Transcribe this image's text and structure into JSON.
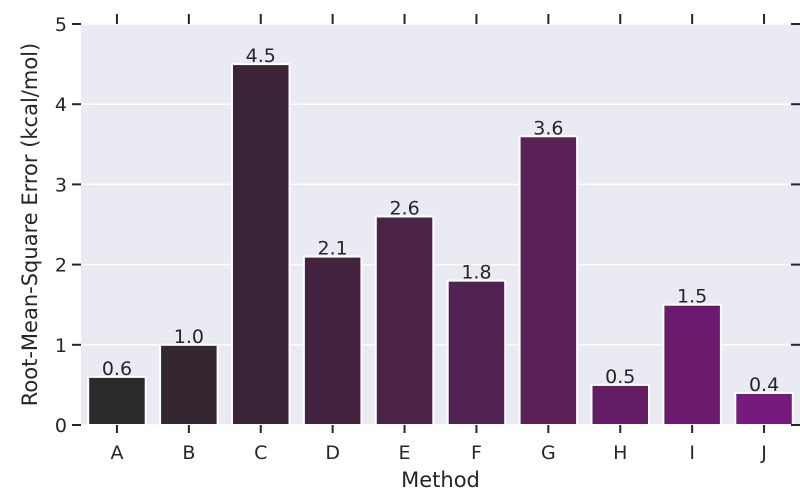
{
  "chart_data": {
    "type": "bar",
    "title": "",
    "xlabel": "Method",
    "ylabel": "Root-Mean-Square Error (kcal/mol)",
    "categories": [
      "A",
      "B",
      "C",
      "D",
      "E",
      "F",
      "G",
      "H",
      "I",
      "J"
    ],
    "values": [
      0.6,
      1.0,
      4.5,
      2.1,
      2.6,
      1.8,
      3.6,
      0.5,
      1.5,
      0.4
    ],
    "data_labels": [
      "0.6",
      "1.0",
      "4.5",
      "2.1",
      "2.6",
      "1.8",
      "3.6",
      "0.5",
      "1.5",
      "0.4"
    ],
    "ylim": [
      0,
      5
    ],
    "yticks": [
      0,
      1,
      2,
      3,
      4,
      5
    ],
    "grid": true,
    "colors": {
      "bars": [
        "#2b2b2b",
        "#352731",
        "#3c2438",
        "#43233f",
        "#4b2349",
        "#522252",
        "#5a2058",
        "#631d65",
        "#6b1a6e",
        "#771a7e"
      ],
      "background": "#eaeaf2",
      "gridline": "#ffffff",
      "axis": "#262626"
    }
  }
}
